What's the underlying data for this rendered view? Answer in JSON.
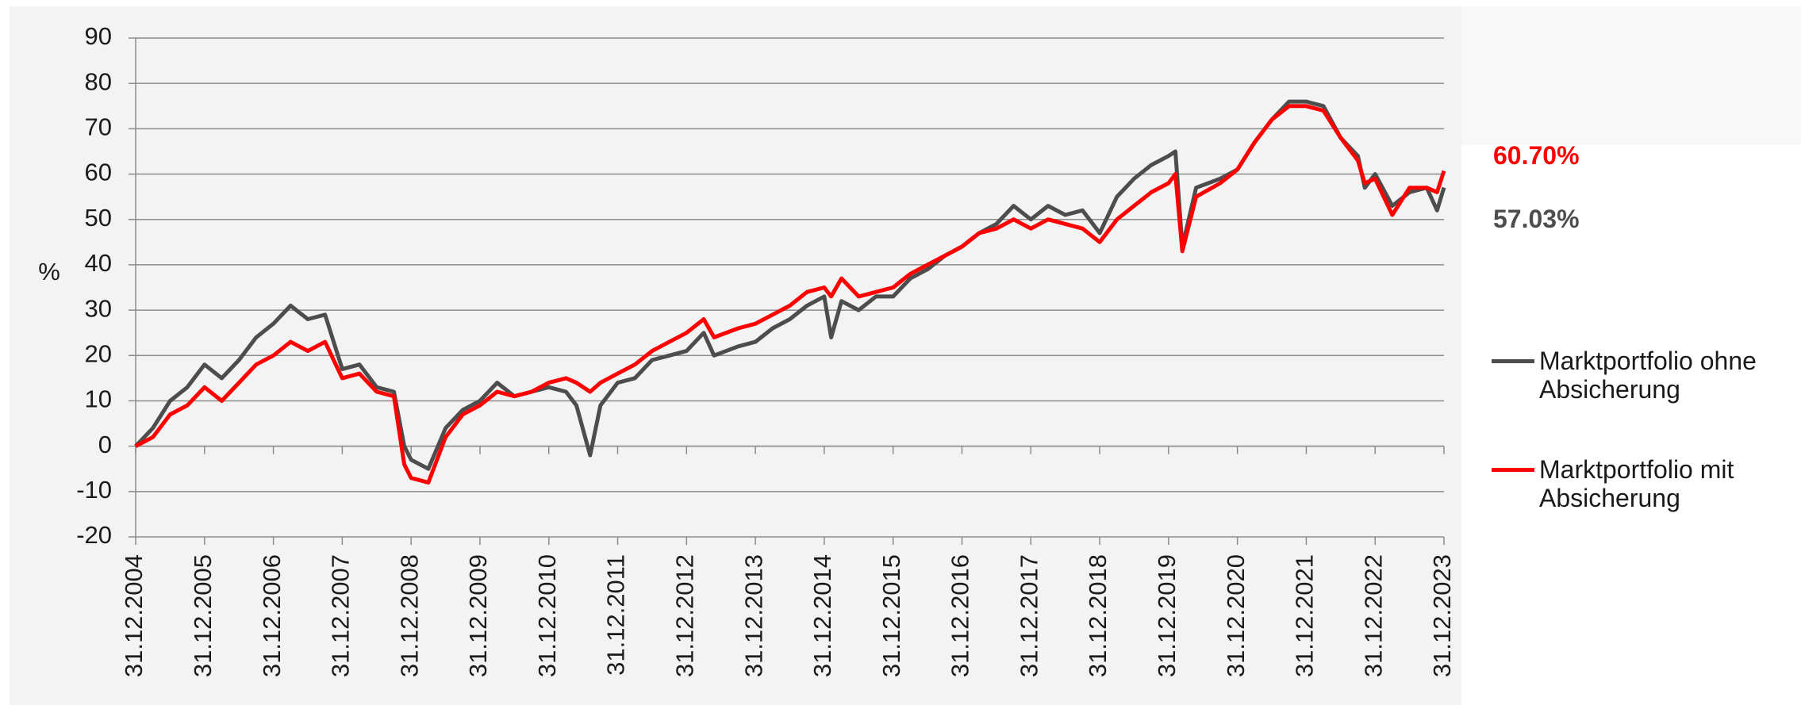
{
  "chart_data": {
    "type": "line",
    "y_label": "%",
    "xlim": [
      2004,
      2023
    ],
    "xticks": [
      {
        "value": 2004,
        "label": "31.12.2004"
      },
      {
        "value": 2005,
        "label": "31.12.2005"
      },
      {
        "value": 2006,
        "label": "31.12.2006"
      },
      {
        "value": 2007,
        "label": "31.12.2007"
      },
      {
        "value": 2008,
        "label": "31.12.2008"
      },
      {
        "value": 2009,
        "label": "31.12.2009"
      },
      {
        "value": 2010,
        "label": "31.12.2010"
      },
      {
        "value": 2011,
        "label": "31.12.2011"
      },
      {
        "value": 2012,
        "label": "31.12.2012"
      },
      {
        "value": 2013,
        "label": "31.12.2013"
      },
      {
        "value": 2014,
        "label": "31.12.2014"
      },
      {
        "value": 2015,
        "label": "31.12.2015"
      },
      {
        "value": 2016,
        "label": "31.12.2016"
      },
      {
        "value": 2017,
        "label": "31.12.2017"
      },
      {
        "value": 2018,
        "label": "31.12.2018"
      },
      {
        "value": 2019,
        "label": "31.12.2019"
      },
      {
        "value": 2020,
        "label": "31.12.2020"
      },
      {
        "value": 2021,
        "label": "31.12.2021"
      },
      {
        "value": 2022,
        "label": "31.12.2022"
      },
      {
        "value": 2023,
        "label": "31.12.2023"
      }
    ],
    "ylim": [
      -20,
      90
    ],
    "yticks": [
      -20,
      -10,
      0,
      10,
      20,
      30,
      40,
      50,
      60,
      70,
      80,
      90
    ],
    "grid": true,
    "x": [
      2004,
      2004.25,
      2004.5,
      2004.75,
      2005,
      2005.25,
      2005.5,
      2005.75,
      2006,
      2006.25,
      2006.5,
      2006.75,
      2007,
      2007.25,
      2007.5,
      2007.75,
      2007.9,
      2008,
      2008.25,
      2008.5,
      2008.75,
      2009,
      2009.25,
      2009.5,
      2009.75,
      2010,
      2010.25,
      2010.4,
      2010.6,
      2010.75,
      2011,
      2011.25,
      2011.5,
      2011.75,
      2012,
      2012.25,
      2012.4,
      2012.75,
      2013,
      2013.25,
      2013.5,
      2013.75,
      2014,
      2014.1,
      2014.25,
      2014.5,
      2014.75,
      2015,
      2015.25,
      2015.5,
      2015.75,
      2016,
      2016.25,
      2016.5,
      2016.75,
      2017,
      2017.25,
      2017.5,
      2017.75,
      2018,
      2018.25,
      2018.5,
      2018.75,
      2019,
      2019.1,
      2019.2,
      2019.4,
      2019.75,
      2020,
      2020.25,
      2020.5,
      2020.75,
      2021,
      2021.25,
      2021.5,
      2021.75,
      2021.85,
      2022,
      2022.25,
      2022.5,
      2022.75,
      2022.9,
      2023
    ],
    "series": [
      {
        "name": "Marktportfolio ohne Absicherung",
        "color": "#4d4d4d",
        "values": [
          0,
          4,
          10,
          13,
          18,
          15,
          19,
          24,
          27,
          31,
          28,
          29,
          17,
          18,
          13,
          12,
          0,
          -3,
          -5,
          4,
          8,
          10,
          14,
          11,
          12,
          13,
          12,
          9,
          -2,
          9,
          14,
          15,
          19,
          20,
          21,
          25,
          20,
          22,
          23,
          26,
          28,
          31,
          33,
          24,
          32,
          30,
          33,
          33,
          37,
          39,
          42,
          44,
          47,
          49,
          53,
          50,
          53,
          51,
          52,
          47,
          55,
          59,
          62,
          64,
          65,
          44,
          57,
          59,
          61,
          67,
          72,
          76,
          76,
          75,
          68,
          64,
          57,
          60,
          53,
          56,
          57,
          52,
          57.03
        ]
      },
      {
        "name": "Marktportfolio mit Absicherung",
        "color": "#ff0000",
        "values": [
          0,
          2,
          7,
          9,
          13,
          10,
          14,
          18,
          20,
          23,
          21,
          23,
          15,
          16,
          12,
          11,
          -4,
          -7,
          -8,
          2,
          7,
          9,
          12,
          11,
          12,
          14,
          15,
          14,
          12,
          14,
          16,
          18,
          21,
          23,
          25,
          28,
          24,
          26,
          27,
          29,
          31,
          34,
          35,
          33,
          37,
          33,
          34,
          35,
          38,
          40,
          42,
          44,
          47,
          48,
          50,
          48,
          50,
          49,
          48,
          45,
          50,
          53,
          56,
          58,
          60,
          43,
          55,
          58,
          61,
          67,
          72,
          75,
          75,
          74,
          68,
          63,
          58,
          59,
          51,
          57,
          57,
          56,
          60.7
        ]
      }
    ],
    "annotations": [
      "60.70%",
      "57.03%"
    ]
  }
}
